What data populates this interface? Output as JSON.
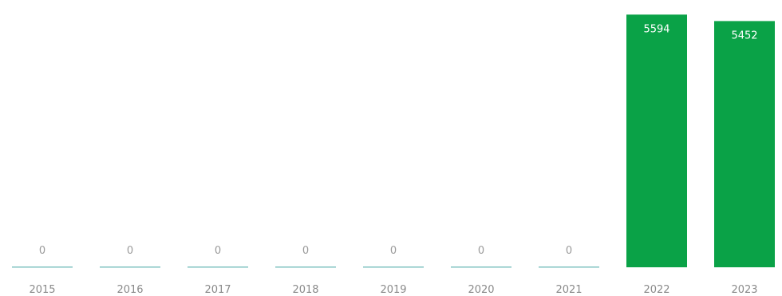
{
  "chart_data": {
    "type": "bar",
    "categories": [
      "2015",
      "2016",
      "2017",
      "2018",
      "2019",
      "2020",
      "2021",
      "2022",
      "2023"
    ],
    "values": [
      0,
      0,
      0,
      0,
      0,
      0,
      0,
      5594,
      5452
    ],
    "data_labels": [
      "0",
      "0",
      "0",
      "0",
      "0",
      "0",
      "0",
      "5594",
      "5452"
    ],
    "title": "",
    "xlabel": "",
    "ylabel": "",
    "ylim": [
      0,
      5600
    ],
    "grid": false,
    "legend": "none",
    "colors": {
      "bar": "#0aa247",
      "zero_bar": "#7fc3c0",
      "label_inside": "#ffffff",
      "label_outside": "#9a9a9a",
      "tick": "#8a8a8a"
    }
  }
}
